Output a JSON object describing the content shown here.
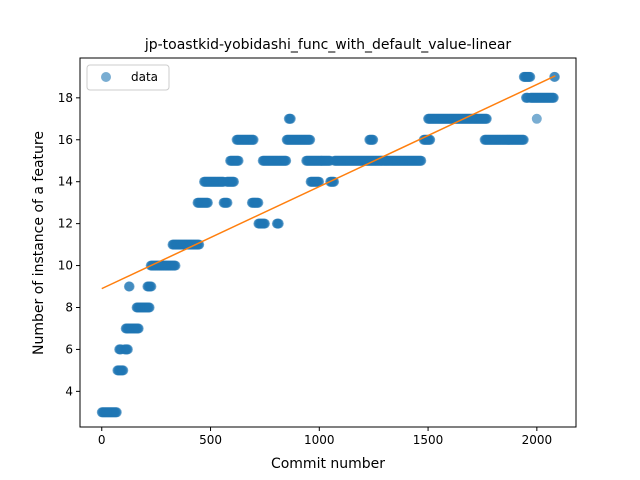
{
  "chart_data": {
    "type": "scatter",
    "title": "jp-toastkid-yobidashi_func_with_default_value-linear",
    "xlabel": "Commit number",
    "ylabel": "Number of instance of a feature",
    "xlim": [
      -100,
      2180
    ],
    "ylim": [
      2.3,
      19.9
    ],
    "xticks": [
      0,
      500,
      1000,
      1500,
      2000
    ],
    "yticks": [
      4,
      6,
      8,
      10,
      12,
      14,
      16,
      18
    ],
    "grid": false,
    "legend": {
      "placement": "top-left",
      "entries": [
        "data"
      ]
    },
    "colors": {
      "data": "#1f77b4",
      "fit": "#ff7f0e"
    },
    "series": [
      {
        "name": "data",
        "kind": "scatter",
        "segments": [
          {
            "x": [
              0,
              70
            ],
            "y": 3,
            "step": 3
          },
          {
            "x": [
              72,
              100
            ],
            "y": 5,
            "step": 3
          },
          {
            "x": [
              80,
              90
            ],
            "y": 6,
            "step": 3
          },
          {
            "x": [
              105,
              120
            ],
            "y": 6,
            "step": 3
          },
          {
            "x": [
              110,
              170
            ],
            "y": 7,
            "step": 3
          },
          {
            "x": [
              125,
              128
            ],
            "y": 9,
            "step": 3
          },
          {
            "x": [
              160,
              220
            ],
            "y": 8,
            "step": 3
          },
          {
            "x": [
              210,
              230
            ],
            "y": 9,
            "step": 3
          },
          {
            "x": [
              225,
              340
            ],
            "y": 10,
            "step": 3
          },
          {
            "x": [
              325,
              450
            ],
            "y": 11,
            "step": 3
          },
          {
            "x": [
              440,
              490
            ],
            "y": 13,
            "step": 3
          },
          {
            "x": [
              470,
              560
            ],
            "y": 14,
            "step": 3
          },
          {
            "x": [
              560,
              580
            ],
            "y": 13,
            "step": 3
          },
          {
            "x": [
              575,
              610
            ],
            "y": 14,
            "step": 3
          },
          {
            "x": [
              590,
              630
            ],
            "y": 15,
            "step": 3
          },
          {
            "x": [
              620,
              700
            ],
            "y": 16,
            "step": 3
          },
          {
            "x": [
              690,
              720
            ],
            "y": 13,
            "step": 3
          },
          {
            "x": [
              720,
              750
            ],
            "y": 12,
            "step": 3
          },
          {
            "x": [
              740,
              850
            ],
            "y": 15,
            "step": 3
          },
          {
            "x": [
              805,
              815
            ],
            "y": 12,
            "step": 3
          },
          {
            "x": [
              850,
              960
            ],
            "y": 16,
            "step": 3
          },
          {
            "x": [
              860,
              870
            ],
            "y": 17,
            "step": 3
          },
          {
            "x": [
              940,
              1010
            ],
            "y": 15,
            "step": 3
          },
          {
            "x": [
              960,
              1000
            ],
            "y": 14,
            "step": 3
          },
          {
            "x": [
              1010,
              1050
            ],
            "y": 15,
            "step": 3
          },
          {
            "x": [
              1050,
              1070
            ],
            "y": 14,
            "step": 3
          },
          {
            "x": [
              1070,
              1470
            ],
            "y": 15,
            "step": 3
          },
          {
            "x": [
              1230,
              1250
            ],
            "y": 16,
            "step": 3
          },
          {
            "x": [
              1480,
              1510
            ],
            "y": 16,
            "step": 3
          },
          {
            "x": [
              1500,
              1770
            ],
            "y": 17,
            "step": 3
          },
          {
            "x": [
              1760,
              1940
            ],
            "y": 16,
            "step": 3
          },
          {
            "x": [
              1940,
              1970
            ],
            "y": 19,
            "step": 3
          },
          {
            "x": [
              1950,
              1960
            ],
            "y": 18,
            "step": 3
          },
          {
            "x": [
              1970,
              2080
            ],
            "y": 18,
            "step": 3
          },
          {
            "x": [
              2000,
              2000
            ],
            "y": 17,
            "step": 3
          },
          {
            "x": [
              2080,
              2085
            ],
            "y": 19,
            "step": 3
          }
        ]
      },
      {
        "name": "fit",
        "kind": "line",
        "x": [
          0,
          2085
        ],
        "y": [
          8.9,
          19.05
        ]
      }
    ]
  }
}
